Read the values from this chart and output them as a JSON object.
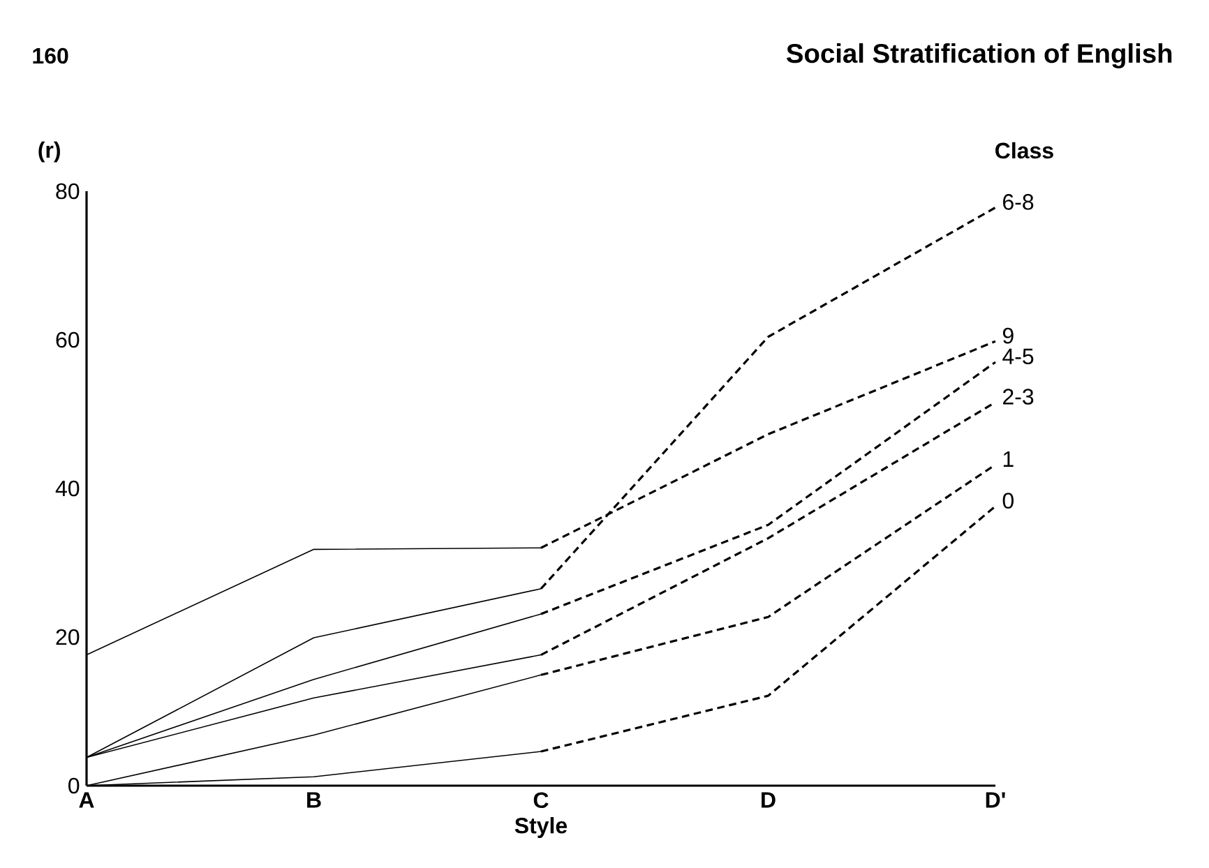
{
  "chart_data": {
    "type": "line",
    "title": "Social Stratification of English",
    "annotations": [
      "160"
    ],
    "xlabel": "Style",
    "ylabel": "(r)",
    "legend_title": "Class",
    "categories": [
      "A",
      "B",
      "C",
      "D",
      "D'"
    ],
    "ylim": [
      0,
      80
    ],
    "yticks": [
      0,
      20,
      40,
      60,
      80
    ],
    "grid": false,
    "marker": "none",
    "series": [
      {
        "color": "#000000",
        "line_style": "solid",
        "values": [
          17.6,
          31.8,
          32,
          null,
          null
        ]
      },
      {
        "name": "9",
        "color": "#000000",
        "line_style": "dashed",
        "values": [
          null,
          null,
          32,
          47.3,
          59.8
        ]
      },
      {
        "color": "#000000",
        "line_style": "solid",
        "values": [
          3.8,
          19.9,
          26.5,
          null,
          null
        ]
      },
      {
        "name": "6-8",
        "color": "#000000",
        "line_style": "dashed",
        "values": [
          null,
          null,
          26.5,
          60.4,
          77.8
        ]
      },
      {
        "color": "#000000",
        "line_style": "solid",
        "values": [
          3.8,
          14.3,
          23.1,
          null,
          null
        ]
      },
      {
        "name": "4-5",
        "color": "#000000",
        "line_style": "dashed",
        "values": [
          null,
          null,
          23.1,
          35.1,
          57
        ]
      },
      {
        "color": "#000000",
        "line_style": "solid",
        "values": [
          3.8,
          11.8,
          17.6,
          null,
          null
        ]
      },
      {
        "name": "2-3",
        "color": "#000000",
        "line_style": "dashed",
        "values": [
          null,
          null,
          17.6,
          33.3,
          51.6
        ]
      },
      {
        "color": "#000000",
        "line_style": "solid",
        "values": [
          0,
          6.8,
          14.9,
          null,
          null
        ]
      },
      {
        "name": "1",
        "color": "#000000",
        "line_style": "dashed",
        "values": [
          null,
          null,
          14.9,
          22.7,
          43.2
        ]
      },
      {
        "color": "#000000",
        "line_style": "solid",
        "values": [
          0,
          1.2,
          4.6,
          null,
          null
        ]
      },
      {
        "name": "0",
        "color": "#000000",
        "line_style": "dashed",
        "values": [
          null,
          null,
          4.6,
          12.1,
          37.6
        ]
      }
    ]
  }
}
